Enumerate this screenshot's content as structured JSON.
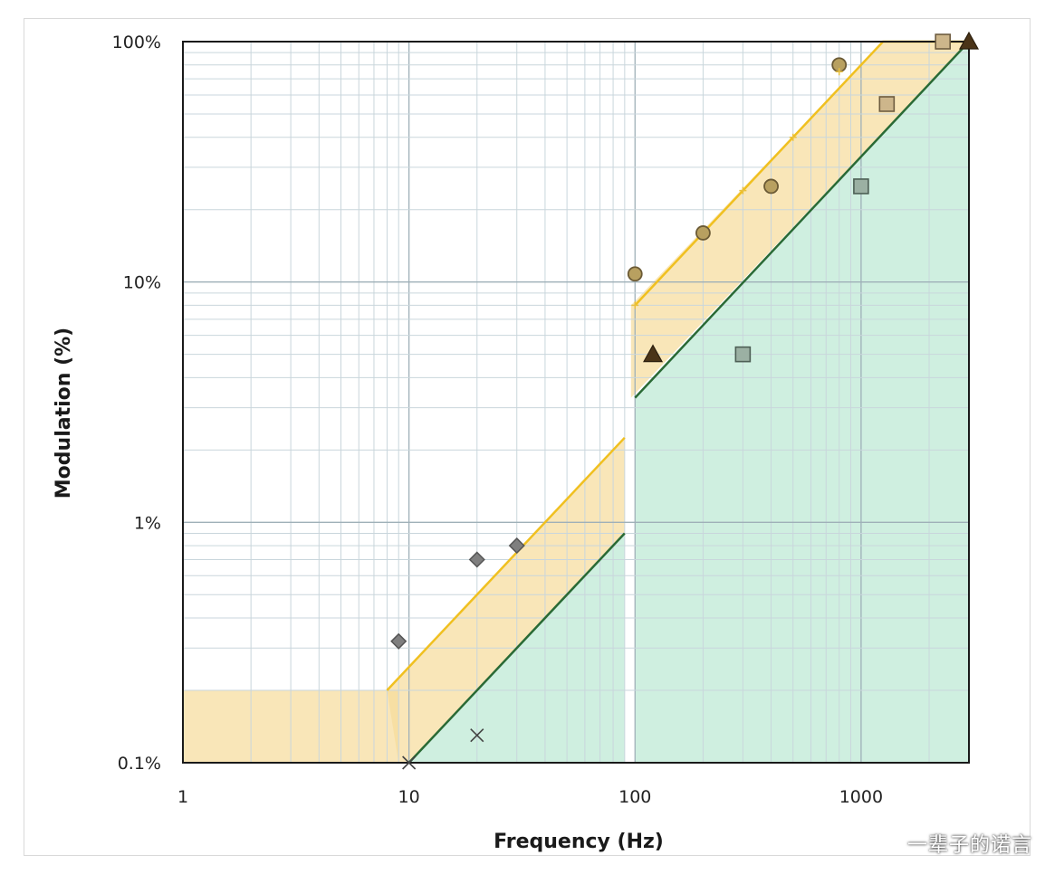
{
  "chart_data": {
    "type": "scatter",
    "title": "",
    "xlabel": "Frequency (Hz)",
    "ylabel": "Modulation  (%)",
    "xscale": "log",
    "yscale": "log",
    "xlim": [
      1,
      3000
    ],
    "ylim": [
      0.1,
      100
    ],
    "grid": true,
    "x_ticks": [
      {
        "value": 1,
        "label": "1"
      },
      {
        "value": 10,
        "label": "10"
      },
      {
        "value": 100,
        "label": "100"
      },
      {
        "value": 1000,
        "label": "1000"
      }
    ],
    "y_ticks": [
      {
        "value": 0.1,
        "label": "0.1%"
      },
      {
        "value": 1,
        "label": "1%"
      },
      {
        "value": 10,
        "label": "10%"
      },
      {
        "value": 100,
        "label": "100%"
      }
    ],
    "regions": [
      {
        "kind": "low-risk",
        "color": "#f7dc9a",
        "opacity": 0.7,
        "polygon": [
          [
            1,
            0.1
          ],
          [
            1,
            0.2
          ],
          [
            9,
            0.2
          ],
          [
            9,
            0.1
          ]
        ]
      },
      {
        "kind": "low-risk",
        "color": "#f7dc9a",
        "opacity": 0.7,
        "polygon": [
          [
            8,
            0.2
          ],
          [
            90,
            2.25
          ],
          [
            90,
            0.9
          ],
          [
            10,
            0.1
          ],
          [
            9,
            0.1
          ]
        ]
      },
      {
        "kind": "low-risk",
        "color": "#f7dc9a",
        "opacity": 0.7,
        "polygon": [
          [
            96,
            3.3
          ],
          [
            96,
            8
          ],
          [
            1250,
            100
          ],
          [
            3000,
            100
          ]
        ]
      },
      {
        "kind": "no-effect",
        "color": "#bfe9d6",
        "opacity": 0.75,
        "polygon": [
          [
            10,
            0.1
          ],
          [
            90,
            0.9
          ],
          [
            90,
            0.1
          ]
        ]
      },
      {
        "kind": "no-effect",
        "color": "#bfe9d6",
        "opacity": 0.75,
        "polygon": [
          [
            100,
            3.3
          ],
          [
            3000,
            100
          ],
          [
            3000,
            0.1
          ],
          [
            100,
            0.1
          ]
        ]
      }
    ],
    "boundary_lines": [
      {
        "color": "#f0c020",
        "width": 2.5,
        "points": [
          [
            8,
            0.2
          ],
          [
            90,
            2.25
          ]
        ]
      },
      {
        "color": "#f0c020",
        "width": 2.5,
        "points": [
          [
            100,
            8
          ],
          [
            1250,
            100
          ],
          [
            3000,
            100
          ]
        ]
      },
      {
        "color": "#2a6a35",
        "width": 2.5,
        "points": [
          [
            10,
            0.1
          ],
          [
            90,
            0.9
          ]
        ]
      },
      {
        "color": "#2a6a35",
        "width": 2.5,
        "points": [
          [
            100,
            3.3
          ],
          [
            3000,
            100
          ]
        ]
      }
    ],
    "series": [
      {
        "marker": "diamond",
        "color": "#7f7f7f",
        "stroke": "#555555",
        "points": [
          [
            9,
            0.32
          ],
          [
            20,
            0.7
          ],
          [
            30,
            0.8
          ]
        ]
      },
      {
        "marker": "circle",
        "color": "#b8a060",
        "stroke": "#6b5a35",
        "points": [
          [
            100,
            10.8
          ],
          [
            200,
            16
          ],
          [
            400,
            25
          ],
          [
            800,
            80
          ]
        ]
      },
      {
        "marker": "triangle",
        "color": "#4a3418",
        "stroke": "#2b1e0d",
        "points": [
          [
            120,
            5
          ],
          [
            3000,
            100
          ]
        ]
      },
      {
        "marker": "square",
        "color": "#9bb0a3",
        "stroke": "#4d5f55",
        "points": [
          [
            300,
            5
          ],
          [
            1000,
            25
          ]
        ]
      },
      {
        "marker": "square",
        "color": "#cdb68b",
        "stroke": "#6d5c40",
        "points": [
          [
            1300,
            55
          ],
          [
            2300,
            100
          ]
        ]
      },
      {
        "marker": "x",
        "color": "#444444",
        "stroke": "#444444",
        "points": [
          [
            20,
            0.13
          ],
          [
            10,
            0.1
          ]
        ]
      },
      {
        "marker": "plus",
        "color": "#e8c040",
        "stroke": "#e8c040",
        "points": [
          [
            100,
            8
          ],
          [
            300,
            24
          ],
          [
            500,
            40
          ],
          [
            800,
            75
          ]
        ]
      }
    ]
  },
  "watermark": "一辈子的诺言"
}
